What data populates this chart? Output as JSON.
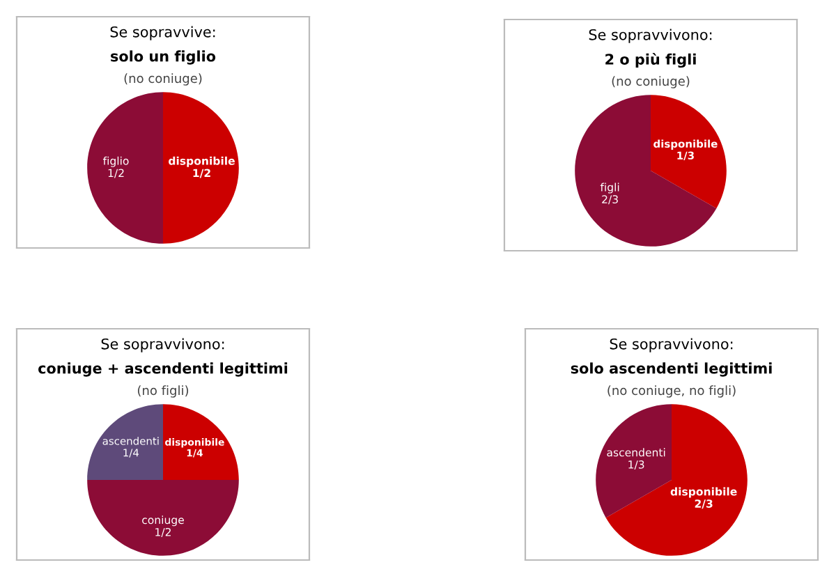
{
  "chart_data": [
    {
      "type": "pie",
      "title": "Se sopravvive:",
      "subtitle": "solo un figlio",
      "annotations": [
        "(no coniuge)"
      ],
      "categories": [
        "disponibile",
        "figlio"
      ],
      "values": [
        0.5,
        0.5
      ],
      "value_labels": [
        "1/2",
        "1/2"
      ],
      "colors": [
        "#cc0000",
        "#8c0c36"
      ]
    },
    {
      "type": "pie",
      "title": "Se sopravvivono:",
      "subtitle": "2 o più figli",
      "annotations": [
        "(no coniuge)"
      ],
      "categories": [
        "disponibile",
        "figli"
      ],
      "values": [
        0.333,
        0.667
      ],
      "value_labels": [
        "1/3",
        "2/3"
      ],
      "colors": [
        "#cc0000",
        "#8c0c36"
      ]
    },
    {
      "type": "pie",
      "title": "Se sopravvivono:",
      "subtitle": "coniuge + ascendenti legittimi",
      "annotations": [
        "(no figli)"
      ],
      "categories": [
        "disponibile",
        "coniuge",
        "ascendenti"
      ],
      "values": [
        0.25,
        0.5,
        0.25
      ],
      "value_labels": [
        "1/4",
        "1/2",
        "1/4"
      ],
      "colors": [
        "#cc0000",
        "#8c0c36",
        "#5e4a7a"
      ]
    },
    {
      "type": "pie",
      "title": "Se sopravvivono:",
      "subtitle": "solo ascendenti legittimi",
      "annotations": [
        "(no coniuge, no figli)"
      ],
      "categories": [
        "disponibile",
        "ascendenti"
      ],
      "values": [
        0.667,
        0.333
      ],
      "value_labels": [
        "2/3",
        "1/3"
      ],
      "colors": [
        "#cc0000",
        "#8c0c36"
      ]
    }
  ]
}
